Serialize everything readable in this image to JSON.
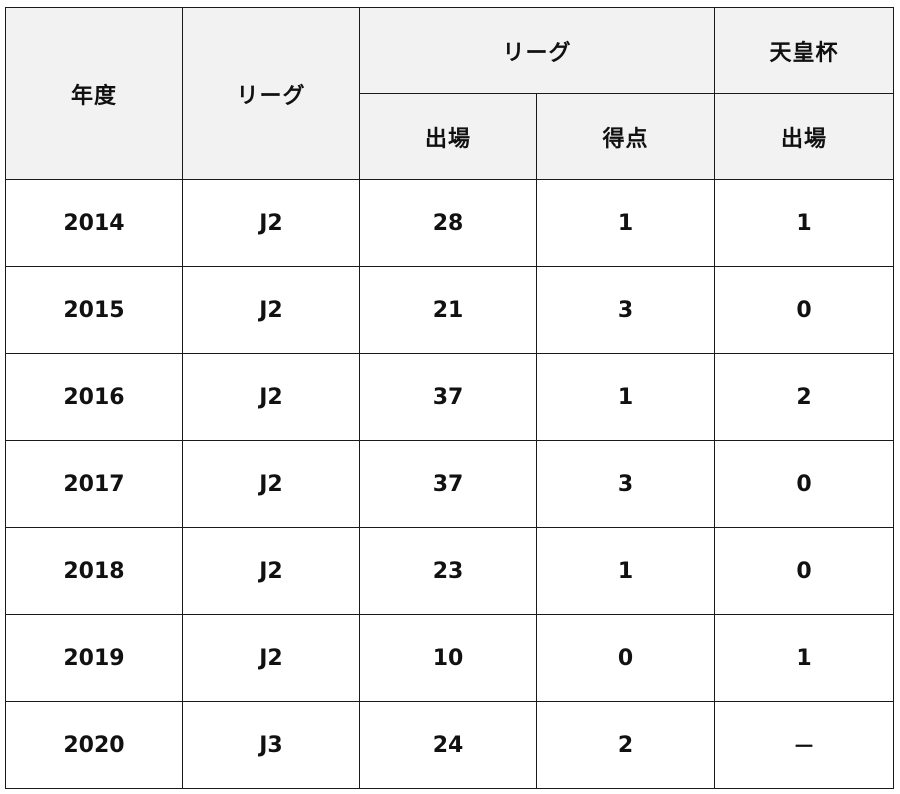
{
  "table": {
    "headers": {
      "year": "年度",
      "league": "リーグ",
      "league_group": "リーグ",
      "cup_group": "天皇杯",
      "appearances": "出場",
      "goals": "得点",
      "cup_appearances": "出場"
    },
    "rows": [
      {
        "year": "2014",
        "league": "J2",
        "appearances": "28",
        "goals": "1",
        "cup": "1"
      },
      {
        "year": "2015",
        "league": "J2",
        "appearances": "21",
        "goals": "3",
        "cup": "0"
      },
      {
        "year": "2016",
        "league": "J2",
        "appearances": "37",
        "goals": "1",
        "cup": "2"
      },
      {
        "year": "2017",
        "league": "J2",
        "appearances": "37",
        "goals": "3",
        "cup": "0"
      },
      {
        "year": "2018",
        "league": "J2",
        "appearances": "23",
        "goals": "1",
        "cup": "0"
      },
      {
        "year": "2019",
        "league": "J2",
        "appearances": "10",
        "goals": "0",
        "cup": "1"
      },
      {
        "year": "2020",
        "league": "J3",
        "appearances": "24",
        "goals": "2",
        "cup": "－"
      }
    ]
  }
}
